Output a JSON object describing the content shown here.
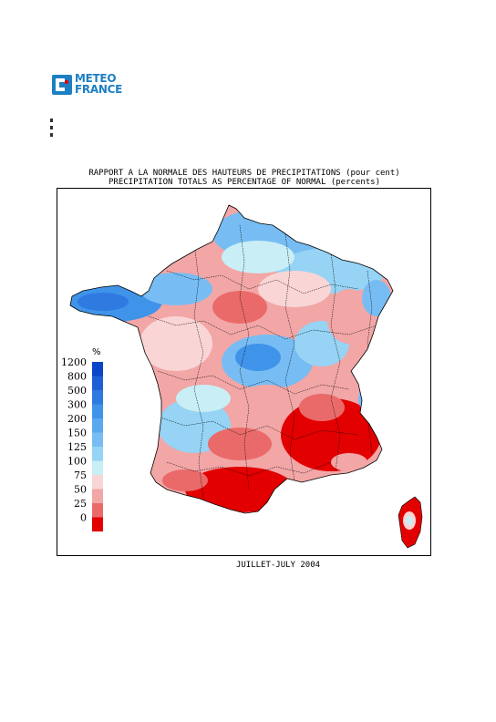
{
  "logo": {
    "line1": "METEO",
    "line2": "FRANCE"
  },
  "title": {
    "line1": "RAPPORT A LA NORMALE DES HAUTEURS DE PRECIPITATIONS (pour cent)",
    "line2": "PRECIPITATION TOTALS AS PERCENTAGE OF NORMAL (percents)"
  },
  "legend": {
    "unit": "%",
    "classes": [
      {
        "label": "1200",
        "color": "#0b45c8"
      },
      {
        "label": "800",
        "color": "#1f5fd6"
      },
      {
        "label": "500",
        "color": "#2f7ae0"
      },
      {
        "label": "300",
        "color": "#3f94ea"
      },
      {
        "label": "200",
        "color": "#5aa9f0"
      },
      {
        "label": "150",
        "color": "#77bdf4"
      },
      {
        "label": "125",
        "color": "#96d3f4"
      },
      {
        "label": "100",
        "color": "#c9eef5"
      },
      {
        "label": "75",
        "color": "#f9d5d5"
      },
      {
        "label": "50",
        "color": "#f2a6a6"
      },
      {
        "label": "25",
        "color": "#ea6a6a"
      },
      {
        "label": "0",
        "color": "#e30000"
      }
    ]
  },
  "footer": "JUILLET-JULY 2004"
}
